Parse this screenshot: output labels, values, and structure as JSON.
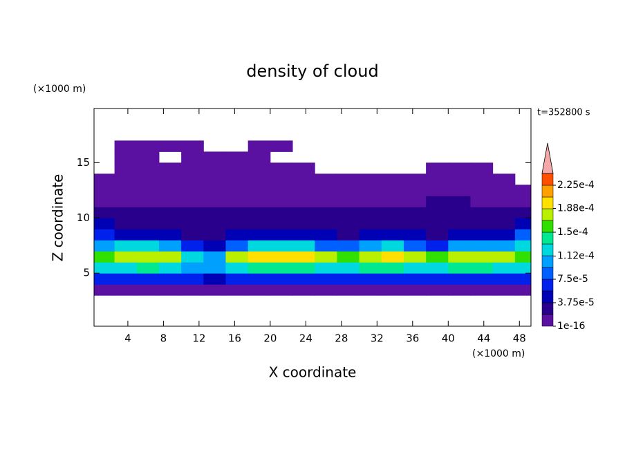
{
  "chart_data": {
    "type": "contour",
    "title": "density of cloud",
    "xlabel": "X coordinate",
    "ylabel": "Z coordinate",
    "xunit": "(×1000 m)",
    "yunit": "(×1000 m)",
    "time_label": "t=352800 s",
    "xlim": [
      0.2,
      49.3
    ],
    "ylim": [
      0.2,
      19.9
    ],
    "xticks": [
      4,
      8,
      12,
      16,
      20,
      24,
      28,
      32,
      36,
      40,
      44,
      48
    ],
    "yticks": [
      5,
      10,
      15
    ],
    "x": [
      1.25,
      3.75,
      6.25,
      8.75,
      11.25,
      13.75,
      16.25,
      18.75,
      21.25,
      23.75,
      26.25,
      28.75,
      31.25,
      33.75,
      36.25,
      38.75,
      41.25,
      43.75,
      46.25,
      48.75
    ],
    "z": [
      3.5,
      4.5,
      5.5,
      6.5,
      7.5,
      8.5,
      9.5,
      10.5,
      11.5,
      12.5,
      13.5,
      14.5,
      15.5,
      16.5
    ],
    "values": [
      [
        1e-05,
        1e-05,
        1e-05,
        1e-05,
        1e-05,
        1e-05,
        1e-05,
        1e-05,
        1e-05,
        1e-05,
        1e-05,
        1e-05,
        1e-05,
        1e-05,
        1e-05,
        1e-05,
        1e-05,
        1e-05,
        1e-05,
        1e-05
      ],
      [
        6e-05,
        6.5e-05,
        6e-05,
        7e-05,
        6e-05,
        5.5e-05,
        6.5e-05,
        7e-05,
        6e-05,
        6e-05,
        6.5e-05,
        6e-05,
        6.5e-05,
        7e-05,
        6e-05,
        6e-05,
        6.5e-05,
        6e-05,
        6.5e-05,
        6e-05
      ],
      [
        0.00012,
        0.00013,
        0.000135,
        0.00013,
        0.00011,
        0.0001,
        0.000125,
        0.00014,
        0.000145,
        0.00014,
        0.00013,
        0.000125,
        0.00014,
        0.000145,
        0.00013,
        0.00012,
        0.000135,
        0.00014,
        0.00013,
        0.00012
      ],
      [
        0.000155,
        0.00017,
        0.000175,
        0.00017,
        0.00012,
        0.0001,
        0.00017,
        0.000195,
        0.000205,
        0.00019,
        0.000175,
        0.00016,
        0.000175,
        0.0002,
        0.00018,
        0.00015,
        0.000175,
        0.00018,
        0.00017,
        0.00016
      ],
      [
        0.0001,
        0.00012,
        0.00013,
        0.00011,
        6e-05,
        5e-05,
        9e-05,
        0.000125,
        0.00013,
        0.00012,
        9e-05,
        8e-05,
        0.0001,
        0.00013,
        9e-05,
        7e-05,
        0.000105,
        0.00011,
        0.0001,
        0.00013
      ],
      [
        6e-05,
        5e-05,
        5.5e-05,
        4.5e-05,
        3.5e-05,
        3e-05,
        4e-05,
        5e-05,
        5e-05,
        4.5e-05,
        4e-05,
        3.5e-05,
        4e-05,
        4.5e-05,
        4e-05,
        3.5e-05,
        4.5e-05,
        5e-05,
        5e-05,
        8e-05
      ],
      [
        4e-05,
        3.5e-05,
        3e-05,
        3e-05,
        2.8e-05,
        2.5e-05,
        3e-05,
        3.2e-05,
        3e-05,
        3e-05,
        2.8e-05,
        3e-05,
        3e-05,
        3.2e-05,
        3e-05,
        2.5e-05,
        3e-05,
        3e-05,
        3.5e-05,
        4e-05
      ],
      [
        2.5e-05,
        2.2e-05,
        2e-05,
        2.2e-05,
        2.5e-05,
        2e-05,
        2.2e-05,
        2.5e-05,
        2.4e-05,
        2e-05,
        2.2e-05,
        2e-05,
        2.2e-05,
        2.5e-05,
        2e-05,
        2.2e-05,
        2.5e-05,
        2.2e-05,
        2e-05,
        2.5e-05
      ],
      [
        1.5e-05,
        1.2e-05,
        1.5e-05,
        1.2e-05,
        1e-05,
        1.2e-05,
        1.5e-05,
        1.2e-05,
        1e-05,
        1.2e-05,
        1e-05,
        1.2e-05,
        1e-05,
        1.5e-05,
        1.2e-05,
        2e-05,
        2.2e-05,
        1.5e-05,
        1.2e-05,
        1e-05
      ],
      [
        1e-05,
        1e-05,
        1e-05,
        1e-05,
        1e-05,
        1e-05,
        1e-05,
        1e-05,
        1e-05,
        1e-05,
        1e-05,
        1e-05,
        1e-05,
        1e-05,
        1e-05,
        1e-05,
        1e-05,
        1e-05,
        1e-05,
        1e-05
      ],
      [
        1e-05,
        1e-05,
        5e-06,
        5e-06,
        5e-06,
        1e-05,
        1e-05,
        5e-06,
        5e-06,
        5e-06,
        5e-06,
        5e-06,
        5e-06,
        5e-06,
        5e-06,
        5e-06,
        5e-06,
        5e-06,
        5e-06,
        null
      ],
      [
        null,
        5e-06,
        5e-06,
        5e-06,
        5e-06,
        5e-06,
        5e-06,
        5e-06,
        5e-06,
        5e-06,
        null,
        null,
        null,
        null,
        null,
        5e-06,
        5e-06,
        5e-06,
        null,
        null
      ],
      [
        null,
        5e-06,
        5e-06,
        null,
        5e-06,
        5e-06,
        5e-06,
        5e-06,
        null,
        null,
        null,
        null,
        null,
        null,
        null,
        null,
        null,
        null,
        null,
        null
      ],
      [
        null,
        5e-06,
        5e-06,
        5e-06,
        5e-06,
        null,
        null,
        5e-06,
        5e-06,
        null,
        null,
        null,
        null,
        null,
        null,
        null,
        null,
        null,
        null,
        null
      ]
    ],
    "levels": [
      1e-16,
      1.875e-05,
      3.75e-05,
      5.625e-05,
      7.5e-05,
      9.375e-05,
      0.0001125,
      0.00013125,
      0.00015,
      0.00016875,
      0.0001875,
      0.00020625,
      0.000225,
      0.00024375
    ],
    "colors": [
      "#5a10a0",
      "#28008c",
      "#0000b4",
      "#0020ec",
      "#0060ff",
      "#00a0ff",
      "#00d8e0",
      "#00e890",
      "#30e000",
      "#b8f000",
      "#ffe000",
      "#ffa000",
      "#ff5000"
    ],
    "over_color": "#f4a8a8",
    "colorbar_ticks": [
      {
        "value": 1e-16,
        "label": "1e-16"
      },
      {
        "value": 3.75e-05,
        "label": "3.75e-5"
      },
      {
        "value": 7.5e-05,
        "label": "7.5e-5"
      },
      {
        "value": 0.000112,
        "label": "1.12e-4"
      },
      {
        "value": 0.00015,
        "label": "1.5e-4"
      },
      {
        "value": 0.000188,
        "label": "1.88e-4"
      },
      {
        "value": 0.000225,
        "label": "2.25e-4"
      }
    ]
  }
}
